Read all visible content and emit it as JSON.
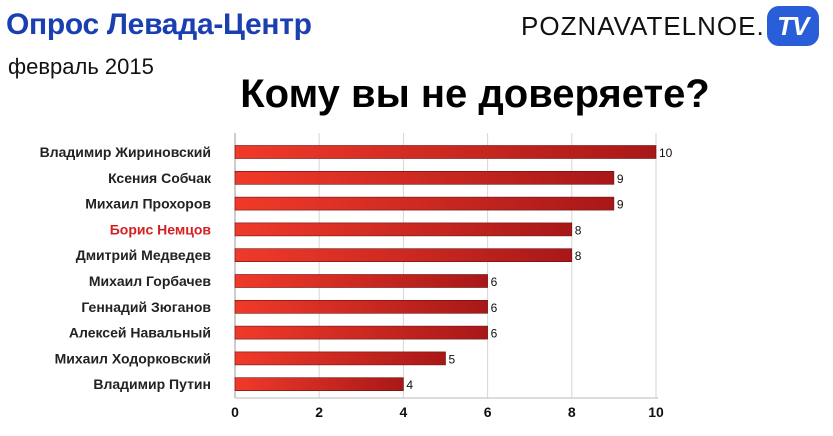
{
  "header": {
    "title": "Опрос Левада-Центр",
    "date": "февраль 2015",
    "brand_text": "POZNAVATELNOE.",
    "brand_badge": "TV"
  },
  "colors": {
    "title": "#1a3fb0",
    "bar": "#d8281f",
    "highlight_label": "#d42020",
    "brand_badge": "#2a5dd8"
  },
  "chart_data": {
    "type": "bar",
    "orientation": "horizontal",
    "title": "Кому вы не доверяете?",
    "xlabel": "",
    "ylabel": "",
    "categories": [
      "Владимир Жириновский",
      "Ксения Собчак",
      "Михаил Прохоров",
      "Борис Немцов",
      "Дмитрий Медведев",
      "Михаил Горбачев",
      "Геннадий Зюганов",
      "Алексей Навальный",
      "Михаил Ходорковский",
      "Владимир Путин"
    ],
    "values": [
      10,
      9,
      9,
      8,
      8,
      6,
      6,
      6,
      5,
      4
    ],
    "value_labels": [
      "10",
      "9",
      "9",
      "8",
      "8",
      "6",
      "6",
      "6",
      "5",
      "4"
    ],
    "highlighted_category": "Борис Немцов",
    "xlim": [
      0,
      10
    ],
    "xticks": [
      "0",
      "2",
      "4",
      "6",
      "8",
      "10"
    ],
    "grid": true,
    "legend": "none"
  }
}
